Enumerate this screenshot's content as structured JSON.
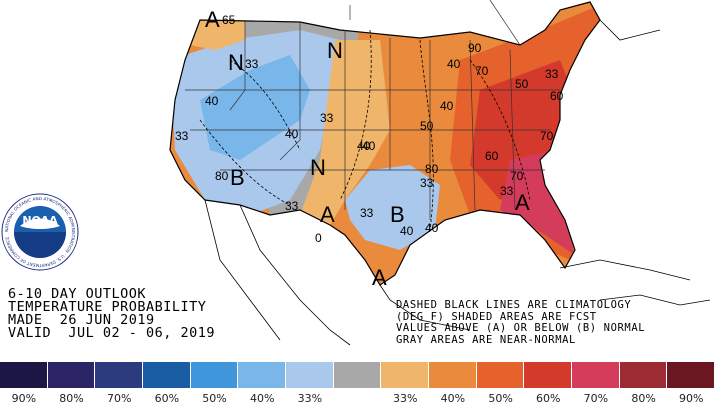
{
  "title_lines": [
    "6-10 DAY OUTLOOK",
    "TEMPERATURE PROBABILITY",
    "MADE  26 JUN 2019",
    "VALID  JUL 02 - 06, 2019"
  ],
  "notes": [
    "DASHED BLACK LINES ARE CLIMATOLOGY",
    "(DEG F) SHADED AREAS ARE FCST",
    "VALUES ABOVE (A) OR BELOW (B) NORMAL",
    "GRAY AREAS ARE NEAR-NORMAL"
  ],
  "logo": {
    "text": "NOAA",
    "ring_text": "NATIONAL OCEANIC AND ATMOSPHERIC ADMINISTRATION · U.S. DEPARTMENT OF COMMERCE"
  },
  "legend": {
    "colors": [
      "#1c1644",
      "#2b2465",
      "#2c3a7e",
      "#1b5da4",
      "#3f96db",
      "#79b6ea",
      "#a9c8ec",
      "#a8a8a8",
      "#efb56b",
      "#ea8a3d",
      "#e5622c",
      "#d43a2c",
      "#d43c5c",
      "#9c2b33",
      "#6a1722"
    ],
    "labels": [
      "90%",
      "80%",
      "70%",
      "60%",
      "50%",
      "40%",
      "33%",
      "",
      "33%",
      "40%",
      "50%",
      "60%",
      "70%",
      "80%",
      "90%"
    ]
  },
  "map_labels": {
    "letters": [
      "A",
      "N",
      "B",
      "N",
      "A",
      "B",
      "A",
      "A",
      "N"
    ],
    "values": [
      "65",
      "33",
      "40",
      "33",
      "40",
      "33",
      "40",
      "33",
      "80",
      "90",
      "40",
      "33",
      "50",
      "33",
      "40",
      "33",
      "33",
      "80",
      "40",
      "70",
      "60",
      "50",
      "70",
      "60",
      "70",
      "40",
      "40",
      "0"
    ]
  },
  "colors": {
    "above_light": "#efb56b",
    "above_mid": "#ea8a3d",
    "above_strong": "#e5622c",
    "above_high": "#d43a2c",
    "above_top": "#d43c5c",
    "below_light": "#a9c8ec",
    "below_mid": "#79b6ea",
    "near_normal": "#a8a8a8"
  }
}
